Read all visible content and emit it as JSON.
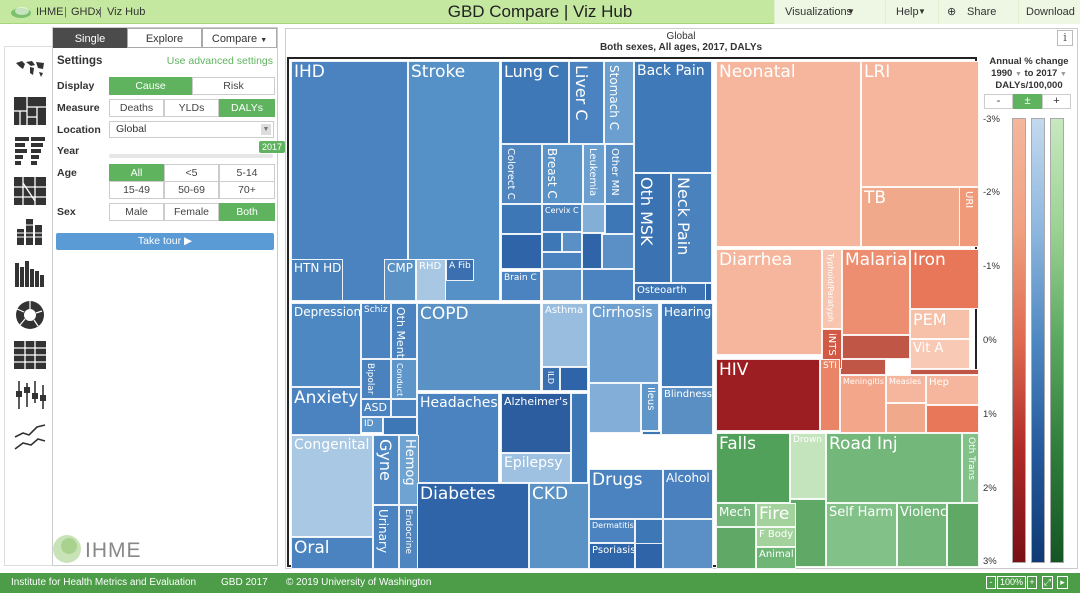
{
  "topbar": {
    "org": "IHME",
    "ghdx": "GHDx",
    "vizhub": "Viz Hub",
    "sep": "|",
    "title": "GBD Compare | Viz Hub",
    "visualizations": "Visualizations",
    "help": "Help",
    "share": "Share",
    "download": "Download"
  },
  "settings": {
    "tabs": [
      "Single",
      "Explore",
      "Compare"
    ],
    "heading": "Settings",
    "advanced": "Use advanced settings",
    "display_label": "Display",
    "display": [
      "Cause",
      "Risk"
    ],
    "measure_label": "Measure",
    "measure": [
      "Deaths",
      "YLDs",
      "DALYs"
    ],
    "location_label": "Location",
    "location": "Global",
    "year_label": "Year",
    "year": "2017",
    "age_label": "Age",
    "ages": [
      "All",
      "<5",
      "5-14",
      "15-49",
      "50-69",
      "70+"
    ],
    "sex_label": "Sex",
    "sexes": [
      "Male",
      "Female",
      "Both"
    ],
    "tour": "Take tour ▶",
    "logo": "IHME"
  },
  "chart": {
    "title": "Global",
    "subtitle": "Both sexes, All ages, 2017, DALYs",
    "info": "i"
  },
  "legend": {
    "line1": "Annual % change",
    "from": "1990",
    "to": "to 2017",
    "line3": "DALYs/100,000",
    "btns": [
      "-",
      "±",
      "+"
    ],
    "ticks": [
      "-3%",
      "-2%",
      "-1%",
      "0%",
      "1%",
      "2%",
      "3%"
    ]
  },
  "footer": {
    "inst": "Institute for Health Metrics and Evaluation",
    "gbd": "GBD 2017",
    "copy": "© 2019 University of Washington",
    "zoom": "100%",
    "minus": "-",
    "plus": "+"
  },
  "treemap": [
    {
      "l": "IHD",
      "s": 17,
      "c": "#4a83bf"
    },
    {
      "l": "Stroke",
      "s": 17,
      "c": "#5590c6"
    },
    {
      "l": "Lung C",
      "s": 16,
      "c": "#3f78b6"
    },
    {
      "l": "Liver C",
      "s": 16,
      "c": "#4a83bf",
      "v": 1
    },
    {
      "l": "Stomach C",
      "s": 12,
      "c": "#6a9fcf",
      "v": 1
    },
    {
      "l": "Back Pain",
      "s": 14,
      "c": "#3f79b8"
    },
    {
      "l": "Colorect C",
      "s": 10,
      "c": "#4f86c0",
      "v": 1
    },
    {
      "l": "Breast C",
      "s": 12,
      "c": "#5a93c7",
      "v": 1
    },
    {
      "l": "Leukemia",
      "s": 10,
      "c": "#6a9fd0",
      "v": 1
    },
    {
      "l": "Other MN",
      "s": 10,
      "c": "#5a90c5",
      "v": 1
    },
    {
      "l": "Cervix C",
      "s": 8,
      "c": "#4a82bd"
    },
    {
      "l": "Brain C",
      "s": 9,
      "c": "#4a83bf"
    },
    {
      "l": "Oth MSK",
      "s": 16,
      "c": "#3b73b2",
      "v": 1
    },
    {
      "l": "Neck Pain",
      "s": 16,
      "c": "#4a82bd",
      "v": 1
    },
    {
      "l": "Osteoarth",
      "s": 10,
      "c": "#3d75b4"
    },
    {
      "l": "HTN HD",
      "s": 12,
      "c": "#4a82bd"
    },
    {
      "l": "CMP",
      "s": 12,
      "c": "#5a92c6"
    },
    {
      "l": "RHD",
      "s": 10,
      "c": "#a7c7e3"
    },
    {
      "l": "A Fib",
      "s": 9,
      "c": "#3c6fb0"
    },
    {
      "l": "Depression",
      "s": 12,
      "c": "#4e88c2"
    },
    {
      "l": "Schiz",
      "s": 9,
      "c": "#4a83bf"
    },
    {
      "l": "Oth Ment",
      "s": 11,
      "c": "#4a83bf",
      "v": 1
    },
    {
      "l": "Bipolar",
      "s": 9,
      "c": "#4a82bd",
      "v": 1
    },
    {
      "l": "Conduct",
      "s": 8,
      "c": "#5f96c9",
      "v": 1
    },
    {
      "l": "Anxiety",
      "s": 17,
      "c": "#4a83bf"
    },
    {
      "l": "ASD",
      "s": 11,
      "c": "#4a83bf"
    },
    {
      "l": "ID",
      "s": 9,
      "c": "#5b94c8"
    },
    {
      "l": "COPD",
      "s": 17,
      "c": "#5a92c6"
    },
    {
      "l": "Asthma",
      "s": 10,
      "c": "#98bddf"
    },
    {
      "l": "ILD",
      "s": 8,
      "c": "#3b70b0",
      "v": 1
    },
    {
      "l": "Cirrhosis",
      "s": 14,
      "c": "#6d9fd0"
    },
    {
      "l": "Hearing",
      "s": 12,
      "c": "#3f79b8"
    },
    {
      "l": "Ileus",
      "s": 10,
      "c": "#5f96c9",
      "v": 1
    },
    {
      "l": "Blindness",
      "s": 10,
      "c": "#5a8fc4"
    },
    {
      "l": "Headaches",
      "s": 14,
      "c": "#4a83bf"
    },
    {
      "l": "Alzheimer's",
      "s": 11,
      "c": "#2c5d9f"
    },
    {
      "l": "Epilepsy",
      "s": 14,
      "c": "#9ec1e1"
    },
    {
      "l": "Congenital",
      "s": 14,
      "c": "#a9c8e4"
    },
    {
      "l": "Gyne",
      "s": 16,
      "c": "#4f88c2",
      "v": 1
    },
    {
      "l": "Hemog",
      "s": 13,
      "c": "#6fa3d2",
      "v": 1
    },
    {
      "l": "Urinary",
      "s": 12,
      "c": "#4a83bf",
      "v": 1
    },
    {
      "l": "Endocrine",
      "s": 9,
      "c": "#4f86c0",
      "v": 1
    },
    {
      "l": "Oral",
      "s": 17,
      "c": "#4a83bf"
    },
    {
      "l": "Diabetes",
      "s": 17,
      "c": "#2f65a8"
    },
    {
      "l": "CKD",
      "s": 17,
      "c": "#5a92c6"
    },
    {
      "l": "Drugs",
      "s": 17,
      "c": "#4a83bf"
    },
    {
      "l": "Alcohol",
      "s": 12,
      "c": "#4a80bd"
    },
    {
      "l": "Dermatitis",
      "s": 8,
      "c": "#4a83bf"
    },
    {
      "l": "Psoriasis",
      "s": 10,
      "c": "#2f66a9"
    },
    {
      "l": "Neonatal",
      "s": 17,
      "c": "#f5b69d"
    },
    {
      "l": "LRI",
      "s": 17,
      "c": "#f5b69d"
    },
    {
      "l": "TB",
      "s": 17,
      "c": "#f0a98b"
    },
    {
      "l": "URI",
      "s": 10,
      "c": "#f09a7a",
      "v": 1
    },
    {
      "l": "Diarrhea",
      "s": 17,
      "c": "#f5b69d"
    },
    {
      "l": "Typhoid/Paratyph",
      "s": 8,
      "c": "#f8c6b0",
      "v": 1
    },
    {
      "l": "iNTS",
      "s": 10,
      "c": "#d05a45",
      "v": 1
    },
    {
      "l": "Malaria",
      "s": 17,
      "c": "#ec8e6f"
    },
    {
      "l": "Iron",
      "s": 17,
      "c": "#e8775a"
    },
    {
      "l": "PEM",
      "s": 16,
      "c": "#f6c0a9"
    },
    {
      "l": "Vit A",
      "s": 13,
      "c": "#f8cab6"
    },
    {
      "l": "HIV",
      "s": 17,
      "c": "#9c1d22"
    },
    {
      "l": "STI",
      "s": 9,
      "c": "#ea8466"
    },
    {
      "l": "Meningitis",
      "s": 8,
      "c": "#f3a68a"
    },
    {
      "l": "Measles",
      "s": 8,
      "c": "#f5b69d"
    },
    {
      "l": "Hep",
      "s": 10,
      "c": "#f5b69d"
    },
    {
      "l": "Falls",
      "s": 17,
      "c": "#52a15a"
    },
    {
      "l": "Drown",
      "s": 9,
      "c": "#c4e4bd"
    },
    {
      "l": "Road Inj",
      "s": 17,
      "c": "#73b87a"
    },
    {
      "l": "Oth Trans",
      "s": 9,
      "c": "#82c188",
      "v": 1
    },
    {
      "l": "Mech",
      "s": 12,
      "c": "#73b87a"
    },
    {
      "l": "Fire",
      "s": 17,
      "c": "#a3d29c"
    },
    {
      "l": "F Body",
      "s": 10,
      "c": "#a3d29c"
    },
    {
      "l": "Animal",
      "s": 10,
      "c": "#6fb576"
    },
    {
      "l": "Self Harm",
      "s": 13,
      "c": "#82c188"
    },
    {
      "l": "Violence",
      "s": 13,
      "c": "#73b87a"
    }
  ],
  "fillers": [
    {
      "c": "#3d77b6"
    },
    {
      "c": "#4a83bf"
    },
    {
      "c": "#2f65a8"
    },
    {
      "c": "#5a90c5"
    },
    {
      "c": "#82aed7"
    },
    {
      "c": "#c05645"
    },
    {
      "c": "#f0a98b"
    },
    {
      "c": "#e8775a"
    },
    {
      "c": "#5fa865"
    }
  ]
}
